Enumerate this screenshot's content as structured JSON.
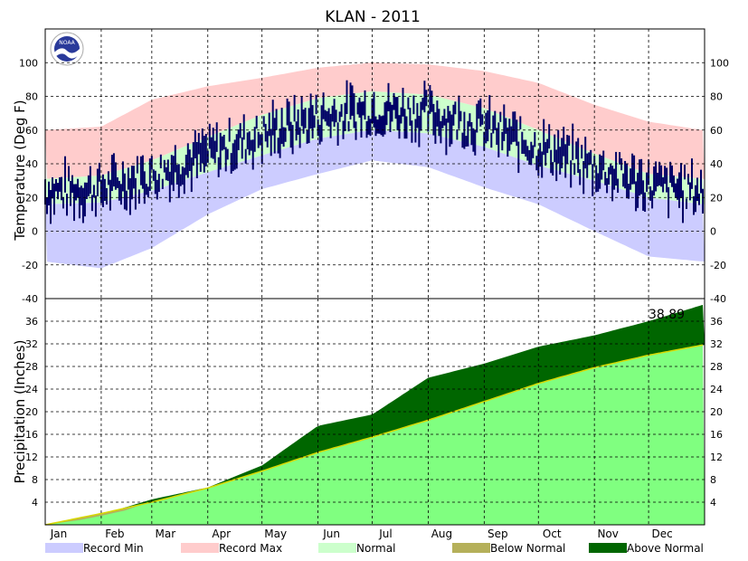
{
  "title": "KLAN - 2011",
  "logo_text": "NOAA",
  "colors": {
    "record_min": "#ccccff",
    "record_max": "#ffcccc",
    "normal": "#ccffcc",
    "observed_temp": "#000066",
    "below_normal": "#b5b05a",
    "above_normal": "#006600",
    "normal_precip": "#80ff80",
    "normal_precip_line": "#d8d800"
  },
  "chart_data": [
    {
      "type": "area",
      "name": "temperature",
      "ylabel": "Temperature (Deg F)",
      "ylim": [
        -40,
        120
      ],
      "yticks": [
        -40,
        -20,
        0,
        20,
        40,
        60,
        80,
        100
      ],
      "months": [
        "Jan",
        "Feb",
        "Mar",
        "Apr",
        "May",
        "Jun",
        "Jul",
        "Aug",
        "Sep",
        "Oct",
        "Nov",
        "Dec"
      ],
      "grid": true,
      "anchor_days": [
        1,
        32,
        60,
        91,
        121,
        152,
        182,
        213,
        244,
        274,
        305,
        335,
        365
      ],
      "normal_high": [
        31,
        33,
        42,
        56,
        69,
        79,
        83,
        81,
        73,
        60,
        46,
        34,
        31
      ],
      "normal_low": [
        16,
        17,
        24,
        35,
        45,
        55,
        60,
        58,
        50,
        39,
        30,
        20,
        16
      ],
      "record_max": [
        60,
        62,
        78,
        86,
        91,
        97,
        100,
        99,
        95,
        88,
        75,
        65,
        60
      ],
      "record_min": [
        -18,
        -22,
        -10,
        10,
        25,
        34,
        42,
        38,
        26,
        16,
        0,
        -15,
        -18
      ],
      "observed": "daily high/low bars"
    },
    {
      "type": "area",
      "name": "precipitation",
      "ylabel": "Precipitation (Inches)",
      "ylim": [
        0,
        40
      ],
      "yticks": [
        4,
        8,
        12,
        16,
        20,
        24,
        28,
        32,
        36,
        40
      ],
      "annotation": "38.89",
      "grid": true,
      "anchor_days": [
        1,
        32,
        60,
        91,
        121,
        152,
        182,
        213,
        244,
        274,
        305,
        335,
        365
      ],
      "normal_cumulative": [
        0,
        2.0,
        4.0,
        6.5,
        9.5,
        12.8,
        15.5,
        18.5,
        21.8,
        25.0,
        27.8,
        30.0,
        31.8
      ],
      "observed_cumulative": [
        0,
        1.8,
        4.5,
        6.6,
        10.5,
        17.5,
        19.5,
        26.0,
        28.5,
        31.5,
        33.5,
        36.0,
        38.89
      ]
    }
  ],
  "legend": [
    {
      "label": "Record Min",
      "color": "#ccccff"
    },
    {
      "label": "Record Max",
      "color": "#ffcccc"
    },
    {
      "label": "Normal",
      "color": "#ccffcc"
    },
    {
      "label": "Below Normal",
      "color": "#b5b05a"
    },
    {
      "label": "Above Normal",
      "color": "#006600"
    }
  ]
}
